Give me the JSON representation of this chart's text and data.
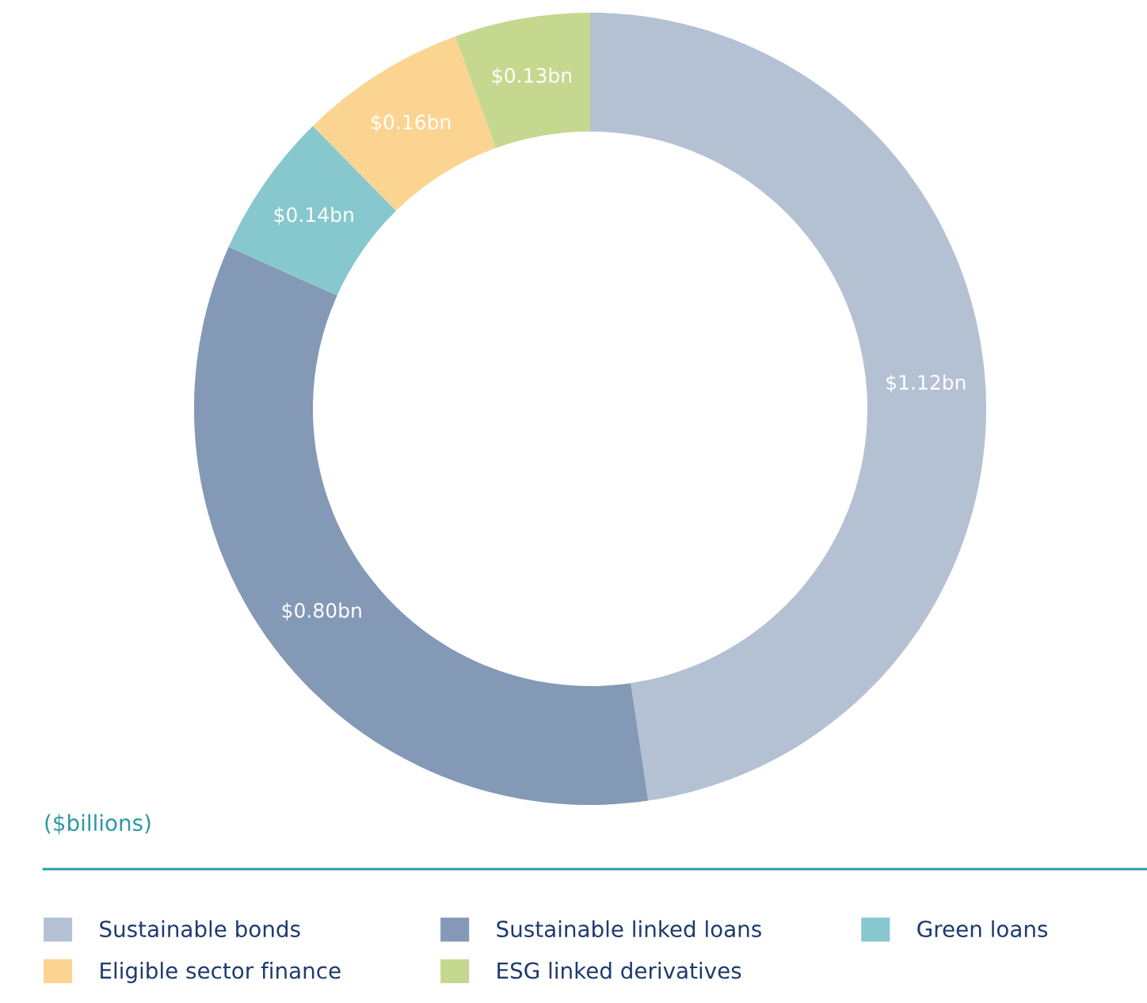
{
  "chart_data": {
    "type": "donut",
    "categories": [
      "Sustainable bonds",
      "Sustainable linked loans",
      "Green loans",
      "Eligible sector finance",
      "ESG linked derivatives"
    ],
    "values": [
      1.12,
      0.8,
      0.14,
      0.16,
      0.13
    ],
    "value_labels": [
      "$1.12bn",
      "$0.80bn",
      "$0.14bn",
      "$0.16bn",
      "$0.13bn"
    ],
    "colors": [
      "#b4c1d3",
      "#8399b6",
      "#86c8ce",
      "#fcd491",
      "#c6d88f"
    ],
    "annotations": [
      "($billions)"
    ],
    "legend": "bottom"
  }
}
